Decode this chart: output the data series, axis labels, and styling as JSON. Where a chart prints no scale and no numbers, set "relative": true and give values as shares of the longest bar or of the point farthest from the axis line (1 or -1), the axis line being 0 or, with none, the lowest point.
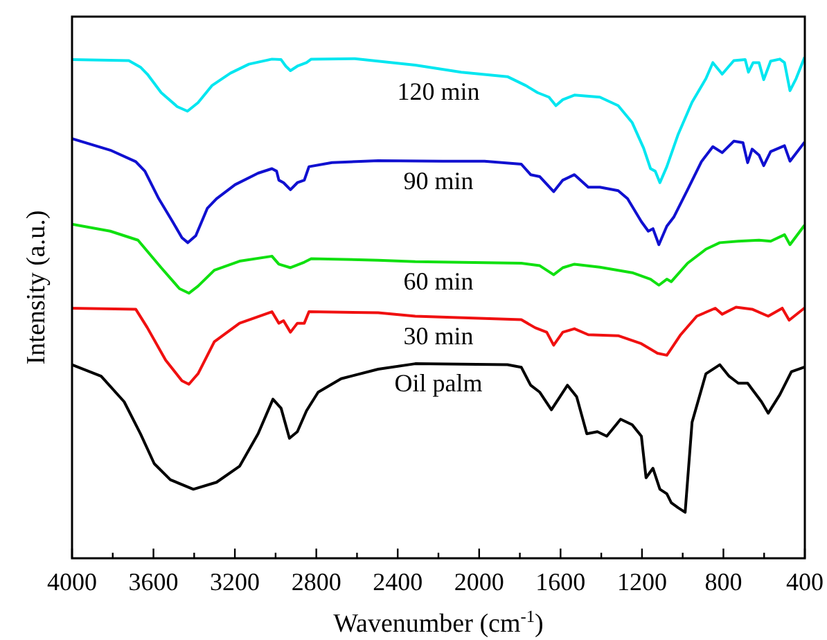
{
  "chart_data": {
    "type": "line",
    "relative": true,
    "xlabel": "Wavenumber (cm$^{-1}$)",
    "ylabel": "Intensity (a.u.)",
    "xlim": [
      4000,
      400
    ],
    "xticks": [
      4000,
      {
        "value": 3800,
        "label": null
      },
      3600,
      {
        "value": 3400,
        "label": null
      },
      3200,
      {
        "value": 3000,
        "label": null
      },
      2800,
      {
        "value": 2600,
        "label": null
      },
      2400,
      {
        "value": 2200,
        "label": null
      },
      2000,
      {
        "value": 1800,
        "label": null
      },
      1600,
      {
        "value": 1400,
        "label": null
      },
      1200,
      {
        "value": 1000,
        "label": null
      },
      800,
      {
        "value": 600,
        "label": null
      },
      400
    ],
    "tick_labels": "x",
    "grid": false,
    "legend": false,
    "line_style": "solid",
    "marker": "none",
    "series": [
      {
        "name": "120 min",
        "color": "#00e6f0",
        "x": [
          4000,
          3721,
          3664,
          3630,
          3562,
          3483,
          3433,
          3381,
          3313,
          3222,
          3131,
          3018,
          2973,
          2950,
          2927,
          2893,
          2848,
          2825,
          2610,
          2314,
          2088,
          1861,
          1770,
          1713,
          1657,
          1623,
          1589,
          1532,
          1407,
          1317,
          1248,
          1192,
          1158,
          1135,
          1112,
          1078,
          1022,
          954,
          886,
          852,
          806,
          749,
          693,
          677,
          654,
          625,
          602,
          568,
          523,
          500,
          473,
          443,
          403
        ],
        "values": [
          0.997,
          0.995,
          0.982,
          0.968,
          0.931,
          0.903,
          0.894,
          0.911,
          0.945,
          0.97,
          0.988,
          0.998,
          0.997,
          0.984,
          0.975,
          0.984,
          0.991,
          0.998,
          0.999,
          0.986,
          0.972,
          0.963,
          0.945,
          0.931,
          0.922,
          0.905,
          0.917,
          0.926,
          0.922,
          0.905,
          0.871,
          0.82,
          0.779,
          0.774,
          0.751,
          0.783,
          0.848,
          0.912,
          0.959,
          0.991,
          0.968,
          0.995,
          0.997,
          0.972,
          0.991,
          0.991,
          0.957,
          0.994,
          0.998,
          0.991,
          0.935,
          0.959,
          1
        ]
      },
      {
        "name": "90 min",
        "color": "#1010d0",
        "x": [
          4000,
          3812,
          3687,
          3642,
          3574,
          3506,
          3460,
          3431,
          3392,
          3335,
          3290,
          3199,
          3086,
          3018,
          2995,
          2984,
          2961,
          2927,
          2893,
          2859,
          2836,
          2723,
          2496,
          2179,
          1974,
          1793,
          1747,
          1702,
          1634,
          1589,
          1532,
          1464,
          1407,
          1317,
          1271,
          1203,
          1169,
          1146,
          1117,
          1078,
          1044,
          976,
          908,
          852,
          806,
          749,
          704,
          681,
          659,
          625,
          602,
          568,
          500,
          473,
          403
        ],
        "values": [
          0.839,
          0.816,
          0.793,
          0.774,
          0.719,
          0.673,
          0.641,
          0.631,
          0.645,
          0.7,
          0.719,
          0.747,
          0.77,
          0.779,
          0.774,
          0.756,
          0.751,
          0.737,
          0.751,
          0.756,
          0.783,
          0.791,
          0.795,
          0.794,
          0.794,
          0.788,
          0.767,
          0.763,
          0.733,
          0.756,
          0.767,
          0.742,
          0.742,
          0.735,
          0.719,
          0.673,
          0.654,
          0.659,
          0.627,
          0.664,
          0.682,
          0.737,
          0.793,
          0.823,
          0.811,
          0.834,
          0.831,
          0.791,
          0.818,
          0.806,
          0.785,
          0.813,
          0.825,
          0.794,
          0.831
        ]
      },
      {
        "name": "60 min",
        "color": "#10e010",
        "x": [
          4000,
          3812,
          3676,
          3562,
          3472,
          3426,
          3381,
          3301,
          3177,
          3018,
          2984,
          2927,
          2859,
          2825,
          2496,
          2314,
          1793,
          1702,
          1634,
          1589,
          1532,
          1407,
          1248,
          1158,
          1117,
          1078,
          1056,
          976,
          886,
          818,
          727,
          625,
          568,
          500,
          473,
          403
        ],
        "values": [
          0.668,
          0.654,
          0.636,
          0.581,
          0.539,
          0.53,
          0.544,
          0.576,
          0.594,
          0.604,
          0.588,
          0.581,
          0.592,
          0.599,
          0.596,
          0.593,
          0.59,
          0.585,
          0.567,
          0.581,
          0.588,
          0.582,
          0.571,
          0.558,
          0.546,
          0.558,
          0.553,
          0.59,
          0.618,
          0.631,
          0.634,
          0.636,
          0.634,
          0.647,
          0.627,
          0.665
        ]
      },
      {
        "name": "30 min",
        "color": "#f01010",
        "x": [
          4000,
          3687,
          3630,
          3540,
          3460,
          3426,
          3381,
          3301,
          3177,
          3018,
          2984,
          2961,
          2927,
          2893,
          2859,
          2836,
          2496,
          2314,
          1793,
          1725,
          1668,
          1634,
          1589,
          1532,
          1464,
          1317,
          1203,
          1124,
          1078,
          1056,
          1010,
          931,
          840,
          806,
          738,
          659,
          580,
          511,
          477,
          403
        ],
        "values": [
          0.5,
          0.498,
          0.461,
          0.396,
          0.355,
          0.348,
          0.369,
          0.433,
          0.47,
          0.493,
          0.47,
          0.475,
          0.452,
          0.47,
          0.47,
          0.493,
          0.491,
          0.484,
          0.477,
          0.461,
          0.452,
          0.426,
          0.452,
          0.459,
          0.447,
          0.445,
          0.429,
          0.41,
          0.406,
          0.419,
          0.447,
          0.484,
          0.5,
          0.488,
          0.502,
          0.498,
          0.484,
          0.5,
          0.476,
          0.5
        ]
      },
      {
        "name": "Oil palm",
        "color": "#000000",
        "x": [
          4000,
          3857,
          3744,
          3664,
          3596,
          3517,
          3404,
          3290,
          3177,
          3086,
          3013,
          2973,
          2932,
          2893,
          2848,
          2791,
          2678,
          2496,
          2314,
          1861,
          1793,
          1747,
          1702,
          1645,
          1566,
          1521,
          1471,
          1419,
          1373,
          1305,
          1248,
          1203,
          1180,
          1146,
          1112,
          1078,
          1056,
          1022,
          988,
          954,
          886,
          818,
          772,
          727,
          681,
          613,
          580,
          523,
          466,
          403
        ],
        "values": [
          0.387,
          0.364,
          0.313,
          0.249,
          0.189,
          0.157,
          0.138,
          0.152,
          0.184,
          0.249,
          0.318,
          0.3,
          0.24,
          0.253,
          0.295,
          0.332,
          0.359,
          0.378,
          0.389,
          0.387,
          0.382,
          0.346,
          0.332,
          0.297,
          0.346,
          0.323,
          0.249,
          0.253,
          0.244,
          0.278,
          0.267,
          0.244,
          0.161,
          0.18,
          0.138,
          0.129,
          0.111,
          0.101,
          0.092,
          0.272,
          0.369,
          0.387,
          0.364,
          0.35,
          0.35,
          0.313,
          0.29,
          0.327,
          0.373,
          0.382
        ]
      }
    ]
  }
}
